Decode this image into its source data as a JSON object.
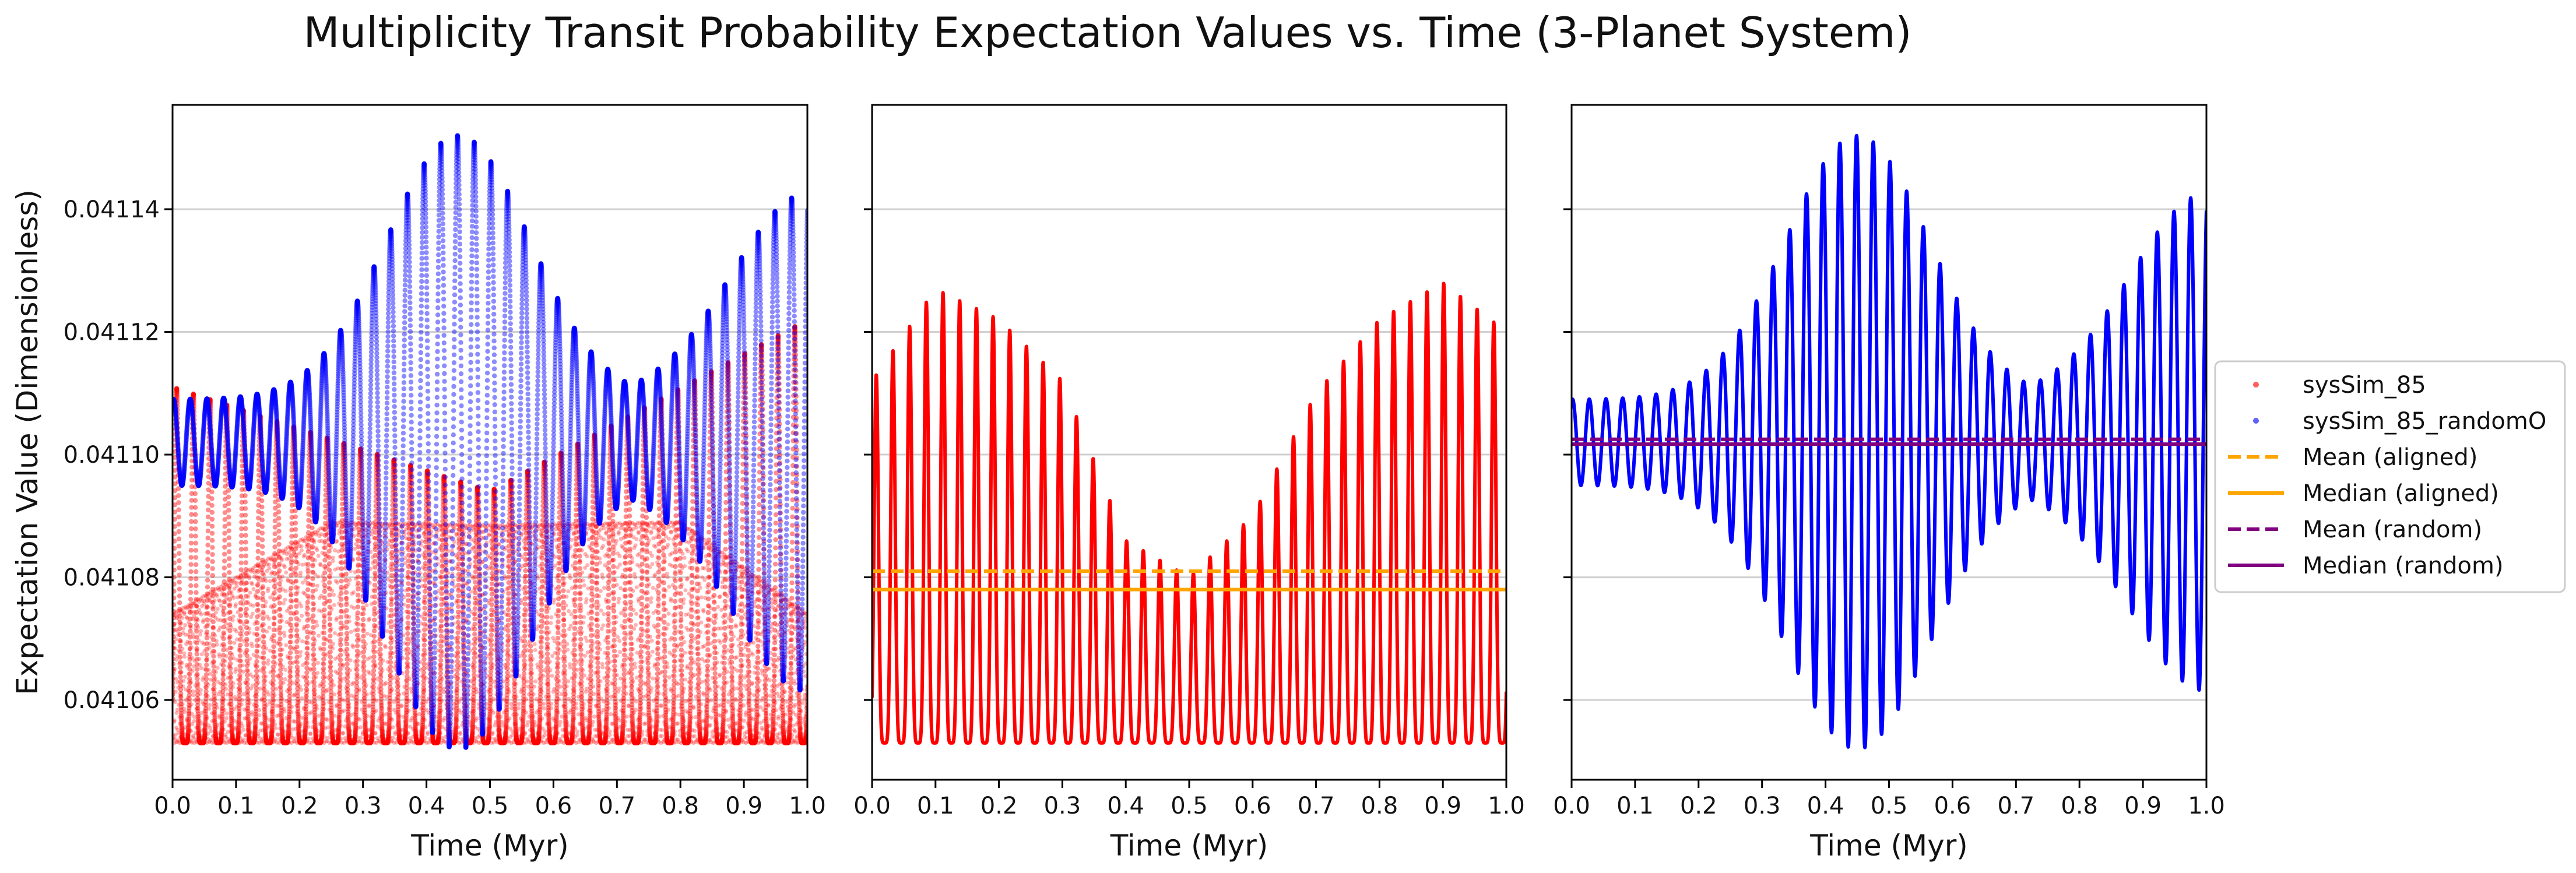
{
  "figure": {
    "title": "Multiplicity Transit Probability Expectation Values vs. Time (3-Planet System)"
  },
  "colors": {
    "aligned": "#ff0000",
    "random": "#0000ff",
    "mean_aligned": "#ffa500",
    "median_aligned": "#ffa500",
    "mean_random": "#800080",
    "median_random": "#800080"
  },
  "legend": {
    "position": "right-outside",
    "entries": [
      {
        "label": "sysSim_85",
        "style": "dot",
        "color": "#ff6060"
      },
      {
        "label": "sysSim_85_randomO",
        "style": "dot",
        "color": "#6060ff"
      },
      {
        "label": "Mean (aligned)",
        "style": "dashed",
        "color": "#ffa500"
      },
      {
        "label": "Median (aligned)",
        "style": "solid",
        "color": "#ffa500"
      },
      {
        "label": "Mean (random)",
        "style": "dashed",
        "color": "#800080"
      },
      {
        "label": "Median (random)",
        "style": "solid",
        "color": "#800080"
      }
    ]
  },
  "chart_data": [
    {
      "type": "scatter",
      "panel": 1,
      "title": "",
      "xlabel": "Time (Myr)",
      "ylabel": "Expectation Value (Dimensionless)",
      "xlim": [
        0.0,
        1.0
      ],
      "ylim": [
        0.041047,
        0.041157
      ],
      "xticks": [
        "0.0",
        "0.1",
        "0.2",
        "0.3",
        "0.4",
        "0.5",
        "0.6",
        "0.7",
        "0.8",
        "0.9",
        "1.0"
      ],
      "yticks": [
        "0.04106",
        "0.04108",
        "0.04110",
        "0.04112",
        "0.04114"
      ],
      "grid": "horizontal",
      "series": [
        {
          "name": "sysSim_85",
          "color": "#ff0000",
          "oscillation": {
            "cycles": 38,
            "min": 0.041053,
            "max_start": 0.041111,
            "max_mid": 0.041094,
            "max_end": 0.041122,
            "lower_band_start": 0.041074,
            "lower_band_peak": 0.041089
          }
        },
        {
          "name": "sysSim_85_randomO",
          "color": "#0000ff",
          "oscillation": {
            "cycles": 38,
            "mid": 0.041102,
            "amp_min": 7e-06,
            "amp_max": 5e-05,
            "amp_peak_x": 0.45,
            "amp_second_peak_x": 1.0
          }
        }
      ]
    },
    {
      "type": "line",
      "panel": 2,
      "title": "",
      "xlabel": "Time (Myr)",
      "ylabel": "",
      "xlim": [
        0.0,
        1.0
      ],
      "ylim": [
        0.041047,
        0.041157
      ],
      "xticks": [
        "0.0",
        "0.1",
        "0.2",
        "0.3",
        "0.4",
        "0.5",
        "0.6",
        "0.7",
        "0.8",
        "0.9",
        "1.0"
      ],
      "grid": "horizontal",
      "series": [
        {
          "name": "sysSim_85",
          "color": "#ff0000",
          "oscillation": {
            "cycles": 38,
            "min": 0.041053,
            "peak_envelope": [
              [
                0.0,
                0.041112
              ],
              [
                0.1,
                0.041127
              ],
              [
                0.2,
                0.041122
              ],
              [
                0.3,
                0.041112
              ],
              [
                0.4,
                0.041086
              ],
              [
                0.5,
                0.04108
              ],
              [
                0.6,
                0.04109
              ],
              [
                0.7,
                0.04111
              ],
              [
                0.8,
                0.041122
              ],
              [
                0.9,
                0.041128
              ],
              [
                1.0,
                0.04112
              ]
            ]
          }
        }
      ],
      "hlines": [
        {
          "name": "Mean (aligned)",
          "value": 0.041081,
          "style": "dashed",
          "color": "#ffa500"
        },
        {
          "name": "Median (aligned)",
          "value": 0.041078,
          "style": "solid",
          "color": "#ffa500"
        }
      ]
    },
    {
      "type": "line",
      "panel": 3,
      "title": "",
      "xlabel": "Time (Myr)",
      "ylabel": "",
      "xlim": [
        0.0,
        1.0
      ],
      "ylim": [
        0.041047,
        0.041157
      ],
      "xticks": [
        "0.0",
        "0.1",
        "0.2",
        "0.3",
        "0.4",
        "0.5",
        "0.6",
        "0.7",
        "0.8",
        "0.9",
        "1.0"
      ],
      "grid": "horizontal",
      "series": [
        {
          "name": "sysSim_85_randomO",
          "color": "#0000ff",
          "oscillation": {
            "cycles": 38,
            "mid": 0.041102,
            "amp_min": 7e-06,
            "amp_max": 5e-05,
            "amp_peak_x": 0.45,
            "amp_second_peak_x": 1.0
          }
        }
      ],
      "hlines": [
        {
          "name": "Mean (random)",
          "value": 0.0411025,
          "style": "dashed",
          "color": "#800080"
        },
        {
          "name": "Median (random)",
          "value": 0.0411017,
          "style": "solid",
          "color": "#800080"
        }
      ]
    }
  ]
}
